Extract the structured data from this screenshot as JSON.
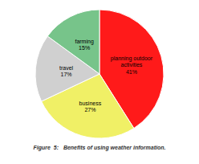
{
  "chart_data": {
    "type": "pie",
    "title": "Figure  5:   Benefits of using weather information.",
    "categories": [
      "planning outdoor\nactivities",
      "business",
      "travel",
      "farming"
    ],
    "values": [
      41,
      27,
      17,
      15
    ],
    "value_labels": [
      "41%",
      "27%",
      "17%",
      "15%"
    ],
    "colors": [
      "#ff1a1a",
      "#f0f066",
      "#d0d0d0",
      "#77c48a"
    ],
    "data_labels": true
  }
}
